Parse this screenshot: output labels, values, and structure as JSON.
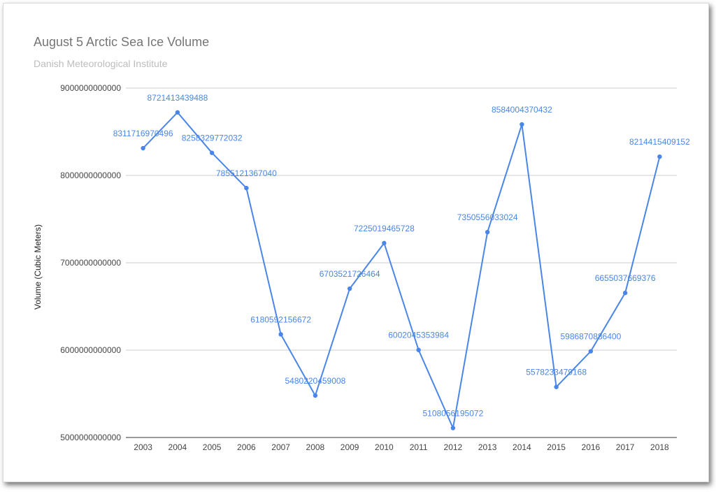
{
  "chart_data": {
    "type": "line",
    "title": "August 5 Arctic Sea Ice Volume",
    "subtitle": "Danish Meteorological Institute",
    "xlabel": "",
    "ylabel": "Volume (Cubic Meters)",
    "ylim": [
      5000000000000,
      9000000000000
    ],
    "yticks": [
      "5000000000000",
      "6000000000000",
      "7000000000000",
      "8000000000000",
      "9000000000000"
    ],
    "grid": true,
    "legend": "none",
    "line_color": "#4a86e8",
    "categories": [
      "2003",
      "2004",
      "2005",
      "2006",
      "2007",
      "2008",
      "2009",
      "2010",
      "2011",
      "2012",
      "2013",
      "2014",
      "2015",
      "2016",
      "2017",
      "2018"
    ],
    "values": [
      8311716970496,
      8721413439488,
      8258329772032,
      7855121367040,
      6180592156672,
      5480220459008,
      6703521726464,
      7225019465728,
      6002045353984,
      5108056195072,
      7350556033024,
      8584004370432,
      5578233479168,
      5986870886400,
      6655037669376,
      8214415409152
    ],
    "labels": [
      "8311716970496",
      "8721413439488",
      "8258329772032",
      "7855121367040",
      "6180592156672",
      "5480220459008",
      "6703521726464",
      "7225019465728",
      "6002045353984",
      "5108056195072",
      "7350556033024",
      "8584004370432",
      "5578233479168",
      "5986870886400",
      "6655037669376",
      "8214415409152"
    ]
  }
}
